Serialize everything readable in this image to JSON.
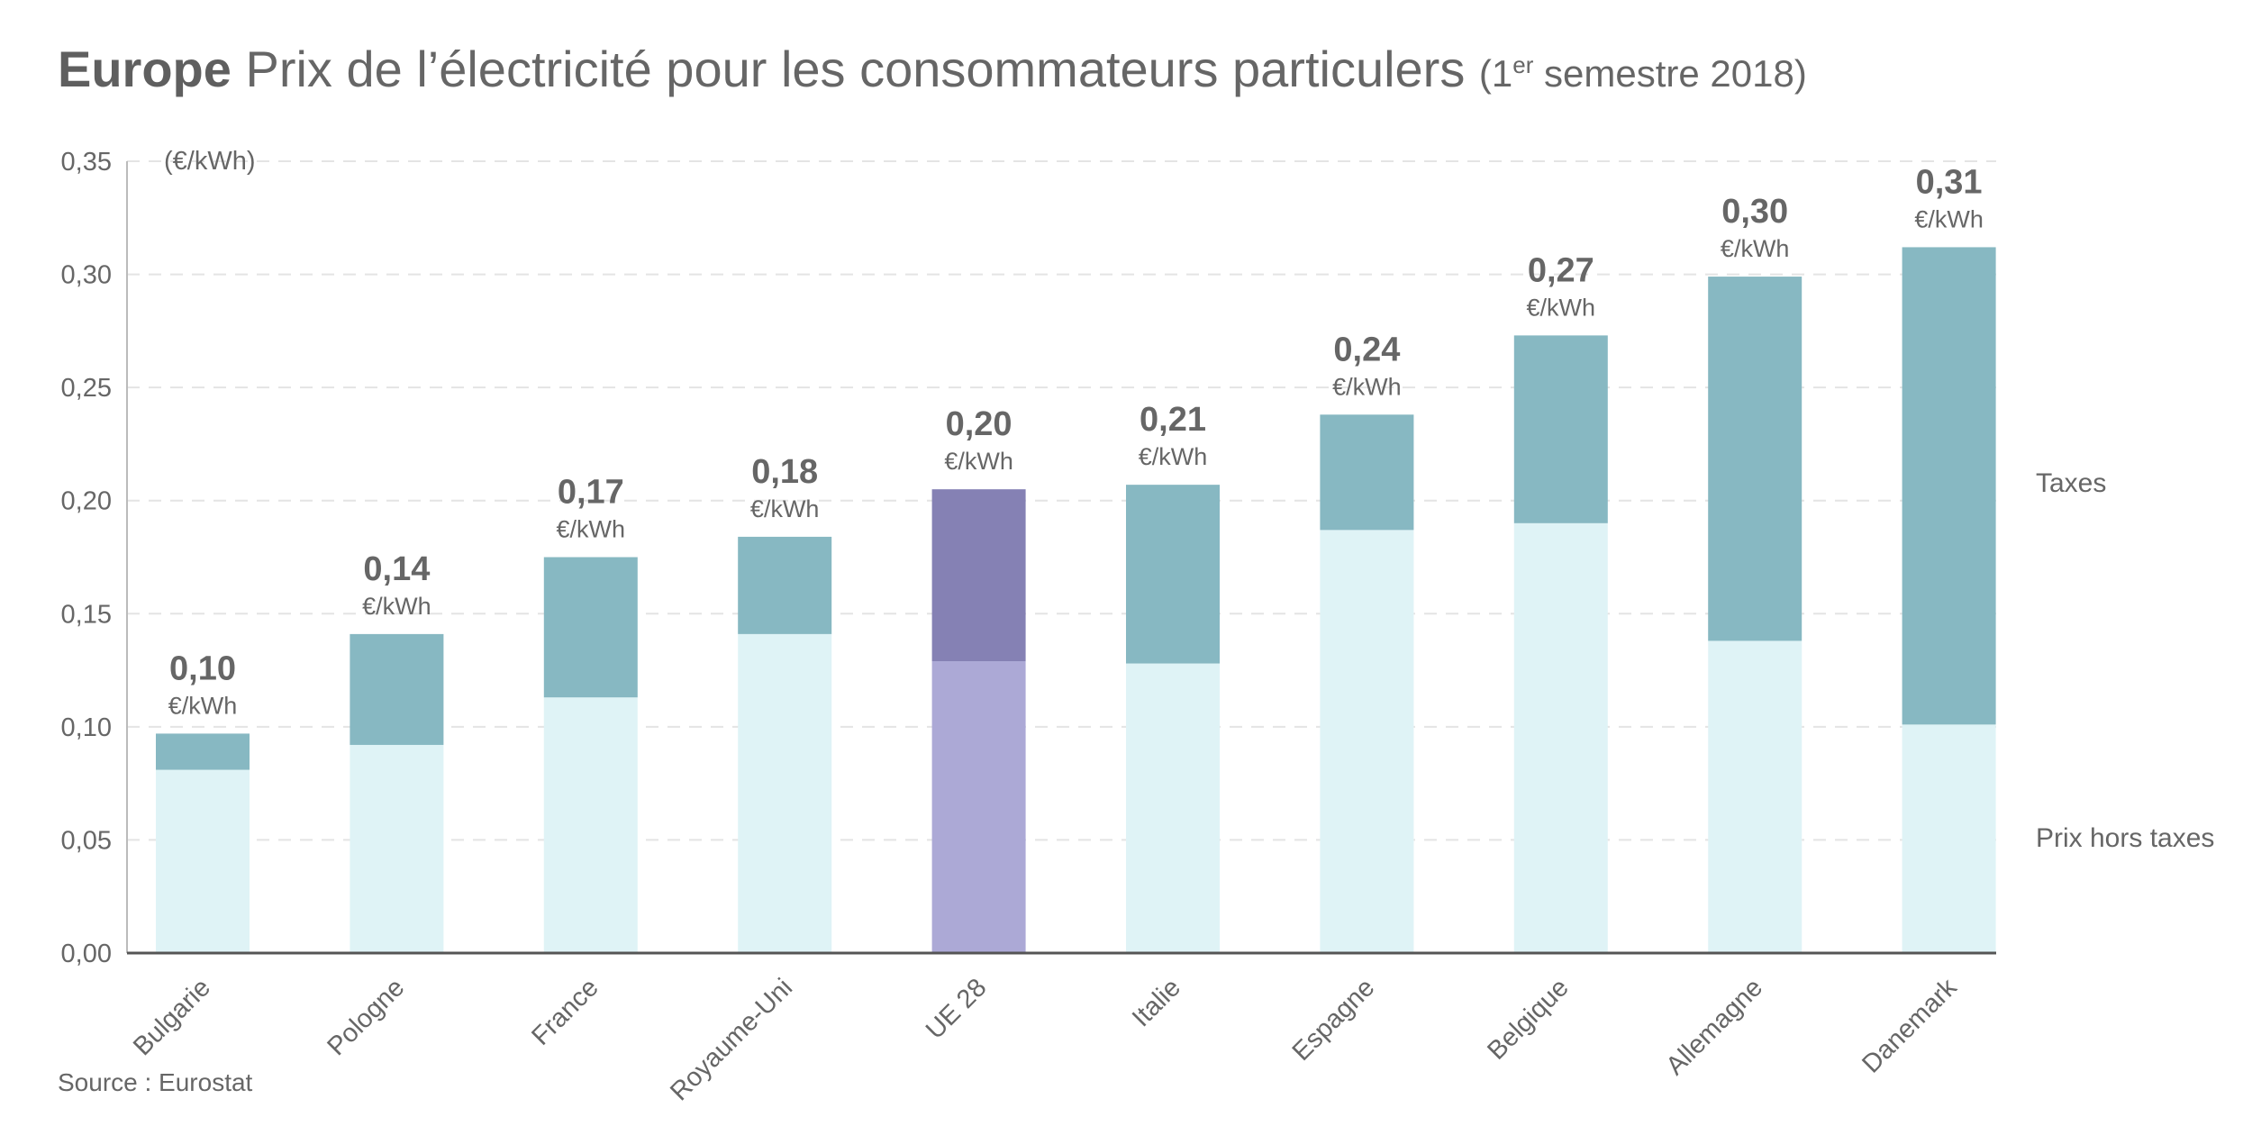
{
  "title": {
    "bold": "Europe",
    "main": "Prix de l’électricité pour les consommateurs particulers",
    "paren_open": "(1",
    "sup": "er",
    "paren_rest": " semestre 2018)"
  },
  "source": "Source : Eurostat",
  "chart_data": {
    "type": "bar",
    "stacked": true,
    "ylabel": "(€/kWh)",
    "ylim": [
      0,
      0.35
    ],
    "yticks": [
      "0,00",
      "0,05",
      "0,10",
      "0,15",
      "0,20",
      "0,25",
      "0,30",
      "0,35"
    ],
    "grid": true,
    "unit_label": "€/kWh",
    "categories": [
      "Bulgarie",
      "Pologne",
      "France",
      "Royaume-Uni",
      "UE 28",
      "Italie",
      "Espagne",
      "Belgique",
      "Allemagne",
      "Danemark"
    ],
    "highlight": "UE 28",
    "series": [
      {
        "name": "Prix hors taxes",
        "values": [
          0.081,
          0.092,
          0.113,
          0.141,
          0.129,
          0.128,
          0.187,
          0.19,
          0.138,
          0.101
        ]
      },
      {
        "name": "Taxes",
        "values": [
          0.016,
          0.049,
          0.062,
          0.043,
          0.076,
          0.079,
          0.051,
          0.083,
          0.161,
          0.211
        ]
      }
    ],
    "total_labels": [
      "0,10",
      "0,14",
      "0,17",
      "0,18",
      "0,20",
      "0,21",
      "0,24",
      "0,27",
      "0,30",
      "0,31"
    ],
    "colors": {
      "base": "#dff3f6",
      "taxes": "#87b8c2",
      "highlight_base": "#aca9d6",
      "highlight_taxes": "#8581b4"
    }
  }
}
